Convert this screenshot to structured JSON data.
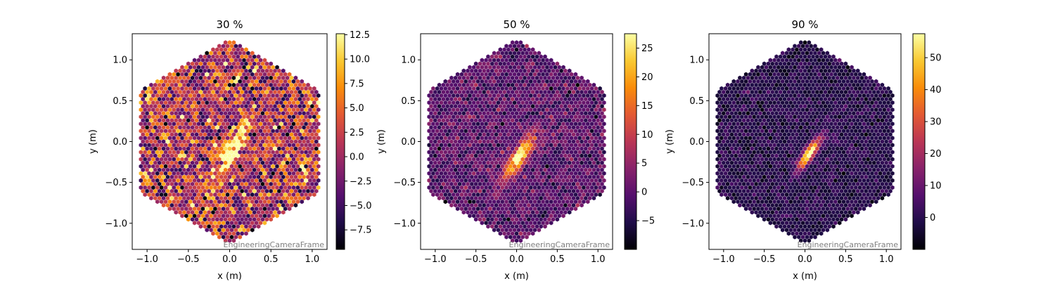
{
  "figure": {
    "background": "#ffffff"
  },
  "chart_data": [
    {
      "type": "heatmap",
      "title": "30 %",
      "xlabel": "x  (m)",
      "ylabel": "y  (m)",
      "xlim": [
        -1.18,
        1.18
      ],
      "ylim": [
        -1.32,
        1.32
      ],
      "xticks": [
        "-1.0",
        "-0.5",
        "0.0",
        "0.5",
        "1.0"
      ],
      "yticks": [
        "-1.0",
        "-0.5",
        "0.0",
        "0.5",
        "1.0"
      ],
      "frame_label": "EngineeringCameraFrame",
      "colormap": "inferno",
      "colorbar": {
        "min": -9.5,
        "max": 12.6,
        "ticks": [
          "-7.5",
          "-5.0",
          "-2.5",
          "0.0",
          "2.5",
          "5.0",
          "7.5",
          "10.0",
          "12.5"
        ]
      },
      "image": {
        "background_mean": 0.9,
        "background_spread": 4.8,
        "peak": 13.5,
        "center": [
          0.03,
          -0.1
        ],
        "half_length": 0.34,
        "half_width": 0.085,
        "angle_deg": 60
      }
    },
    {
      "type": "heatmap",
      "title": "50 %",
      "xlabel": "x  (m)",
      "ylabel": "y  (m)",
      "xlim": [
        -1.18,
        1.18
      ],
      "ylim": [
        -1.32,
        1.32
      ],
      "xticks": [
        "-1.0",
        "-0.5",
        "0.0",
        "0.5",
        "1.0"
      ],
      "yticks": [
        "-1.0",
        "-0.5",
        "0.0",
        "0.5",
        "1.0"
      ],
      "frame_label": "EngineeringCameraFrame",
      "colormap": "inferno",
      "colorbar": {
        "min": -10,
        "max": 27.5,
        "ticks": [
          "-5",
          "0",
          "5",
          "10",
          "15",
          "20",
          "25"
        ]
      },
      "image": {
        "background_mean": -0.5,
        "background_spread": 3.0,
        "peak": 26,
        "center": [
          0.04,
          -0.18
        ],
        "half_length": 0.28,
        "half_width": 0.075,
        "angle_deg": 55
      }
    },
    {
      "type": "heatmap",
      "title": "90 %",
      "xlabel": "x  (m)",
      "ylabel": "y  (m)",
      "xlim": [
        -1.18,
        1.18
      ],
      "ylim": [
        -1.32,
        1.32
      ],
      "xticks": [
        "-1.0",
        "-0.5",
        "0.0",
        "0.5",
        "1.0"
      ],
      "yticks": [
        "-1.0",
        "-0.5",
        "0.0",
        "0.5",
        "1.0"
      ],
      "frame_label": "EngineeringCameraFrame",
      "colormap": "inferno",
      "colorbar": {
        "min": -10,
        "max": 57.5,
        "ticks": [
          "0",
          "10",
          "20",
          "30",
          "40",
          "50"
        ]
      },
      "image": {
        "background_mean": -1.0,
        "background_spread": 3.2,
        "peak": 55,
        "center": [
          0.05,
          -0.15
        ],
        "half_length": 0.2,
        "half_width": 0.055,
        "angle_deg": 55
      }
    }
  ]
}
